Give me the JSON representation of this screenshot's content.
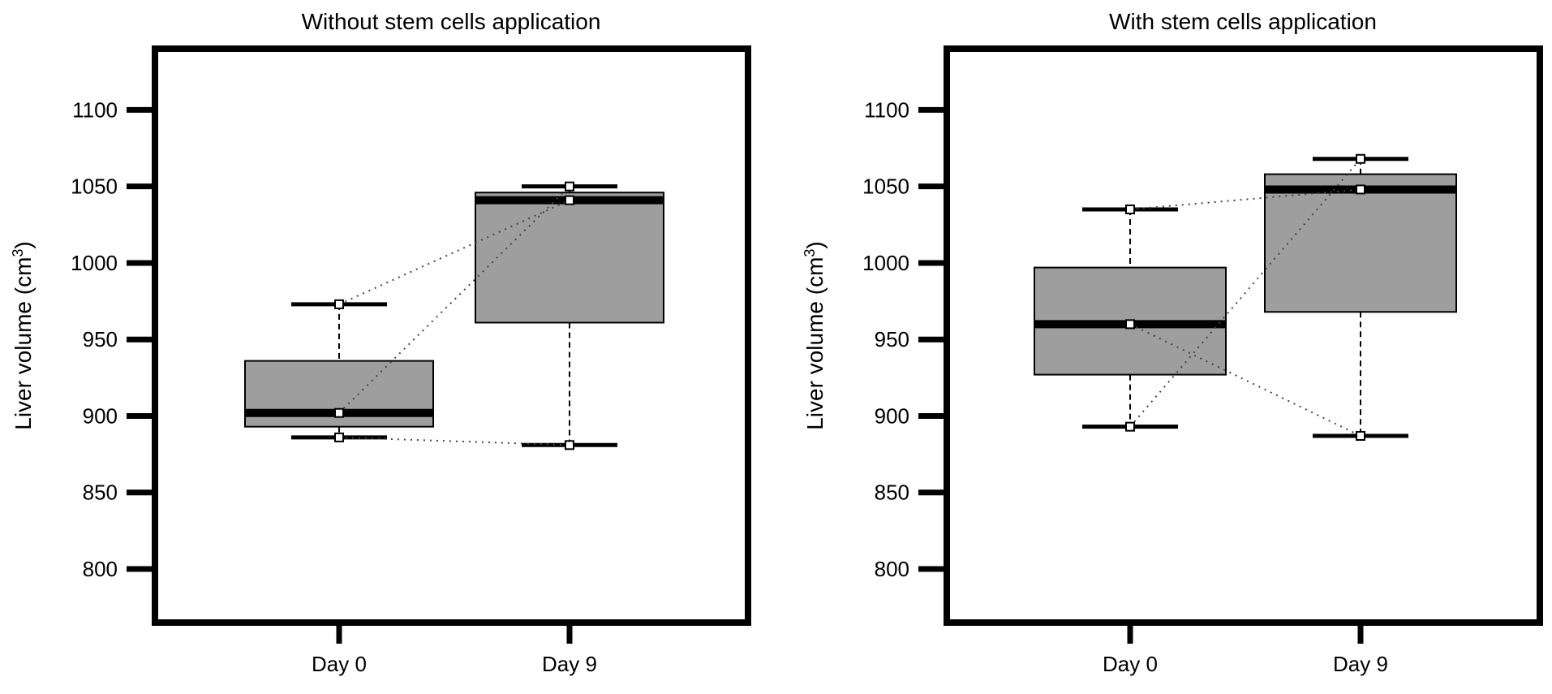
{
  "chart_data": [
    {
      "type": "box",
      "title": "Without stem cells application",
      "ylabel_main": "Liver volume (cm",
      "ylabel_sup": "3",
      "ylabel_close": ")",
      "ylim": [
        765,
        1140
      ],
      "yticks": [
        "800",
        "850",
        "900",
        "950",
        "1000",
        "1050",
        "1100"
      ],
      "categories": [
        "Day 0",
        "Day 9"
      ],
      "boxes": [
        {
          "min": 886,
          "q1": 893,
          "median": 902,
          "q3": 936,
          "max": 973
        },
        {
          "min": 881,
          "q1": 961,
          "median": 1041,
          "q3": 1046,
          "max": 1050
        }
      ],
      "paired_points": [
        [
          973,
          1041
        ],
        [
          902,
          1050
        ],
        [
          886,
          881
        ]
      ],
      "fill": "#9e9e9e"
    },
    {
      "type": "box",
      "title": "With stem cells application",
      "ylabel_main": "Liver volume (cm",
      "ylabel_sup": "3",
      "ylabel_close": ")",
      "ylim": [
        765,
        1140
      ],
      "yticks": [
        "800",
        "850",
        "900",
        "950",
        "1000",
        "1050",
        "1100"
      ],
      "categories": [
        "Day 0",
        "Day 9"
      ],
      "boxes": [
        {
          "min": 893,
          "q1": 927,
          "median": 960,
          "q3": 997,
          "max": 1035
        },
        {
          "min": 887,
          "q1": 968,
          "median": 1048,
          "q3": 1058,
          "max": 1068
        }
      ],
      "paired_points": [
        [
          1035,
          1048
        ],
        [
          960,
          887
        ],
        [
          893,
          1068
        ]
      ],
      "fill": "#9e9e9e"
    }
  ]
}
